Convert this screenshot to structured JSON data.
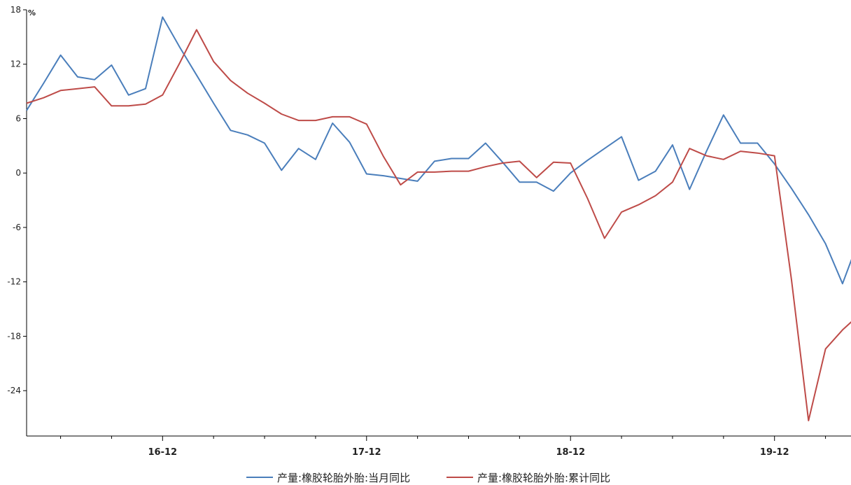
{
  "chart_data": {
    "type": "line",
    "unit": "%",
    "ylim": [
      -29,
      18
    ],
    "yticks": [
      18,
      12,
      6,
      0,
      -6,
      -12,
      -18,
      -24
    ],
    "xlim": [
      0,
      48.5
    ],
    "x_labels": [
      {
        "label": "16-12",
        "index": 8
      },
      {
        "label": "17-12",
        "index": 20
      },
      {
        "label": "18-12",
        "index": 32
      },
      {
        "label": "19-12",
        "index": 44
      }
    ],
    "minor_ticks": [
      2,
      5,
      11,
      14,
      17,
      23,
      26,
      29,
      35,
      38,
      41,
      47
    ],
    "legend_position": "bottom-center",
    "grid": false,
    "series": [
      {
        "name": "产量:橡胶轮胎外胎:当月同比",
        "color": "#4a7ebb",
        "values": [
          6.9,
          9.9,
          13.0,
          10.6,
          10.3,
          11.9,
          8.6,
          9.3,
          17.2,
          13.9,
          10.8,
          7.7,
          4.7,
          4.2,
          3.3,
          0.3,
          2.7,
          1.5,
          5.5,
          3.4,
          -0.1,
          -0.3,
          -0.6,
          -0.9,
          1.3,
          1.6,
          1.6,
          3.3,
          1.2,
          -1.0,
          -1.0,
          -2.0,
          0.0,
          1.4,
          2.7,
          4.0,
          -0.8,
          0.2,
          3.1,
          -1.8,
          2.4,
          6.4,
          3.3,
          3.3,
          1.0,
          -1.7,
          -4.6,
          -7.8,
          -12.2,
          -7.2
        ]
      },
      {
        "name": "产量:橡胶轮胎外胎:累计同比",
        "color": "#be4b48",
        "values": [
          7.7,
          8.3,
          9.1,
          9.3,
          9.5,
          7.4,
          7.4,
          7.6,
          8.6,
          12.1,
          15.8,
          12.3,
          10.2,
          8.8,
          7.7,
          6.5,
          5.8,
          5.8,
          6.2,
          6.2,
          5.4,
          1.8,
          -1.3,
          0.1,
          0.1,
          0.2,
          0.2,
          0.7,
          1.1,
          1.3,
          -0.5,
          1.2,
          1.1,
          -2.8,
          -7.2,
          -4.3,
          -3.5,
          -2.5,
          -1.0,
          2.7,
          1.9,
          1.5,
          2.4,
          2.2,
          1.9,
          -11.8,
          -27.3,
          -19.4,
          -17.3,
          -15.6
        ]
      }
    ]
  }
}
